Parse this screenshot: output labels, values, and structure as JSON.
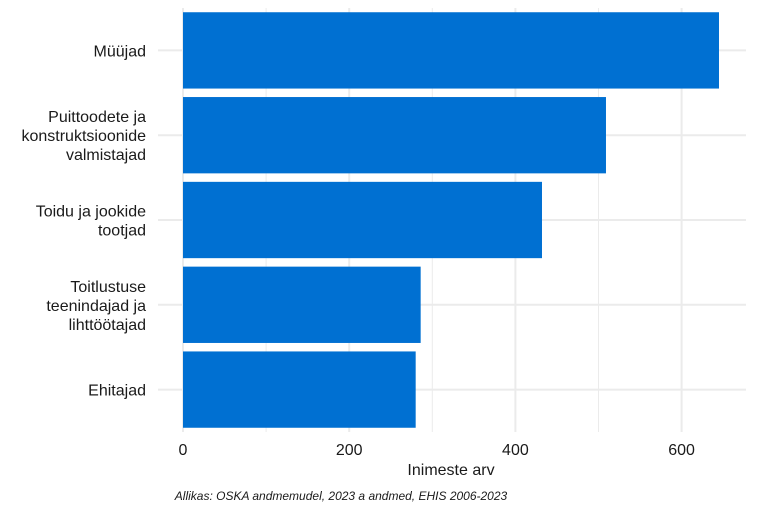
{
  "chart_data": {
    "type": "bar",
    "orientation": "horizontal",
    "categories": [
      [
        "Müüjad"
      ],
      [
        "Puittoodete ja",
        "konstruktsioonide",
        "valmistajad"
      ],
      [
        "Toidu ja jookide",
        "tootjad"
      ],
      [
        "Toitlustuse",
        "teenindajad ja",
        "lihttöötajad"
      ],
      [
        "Ehitajad"
      ]
    ],
    "values": [
      645,
      509,
      432,
      286,
      280
    ],
    "xlabel": "Inimeste arv",
    "xlim": [
      0,
      680
    ],
    "xticks": [
      0,
      200,
      400,
      600
    ],
    "grid": true,
    "bar_color": "#0070D2",
    "grid_color": "#EBEBEB"
  },
  "caption": "Allikas: OSKA andmemudel, 2023 a andmed, EHIS 2006-2023"
}
